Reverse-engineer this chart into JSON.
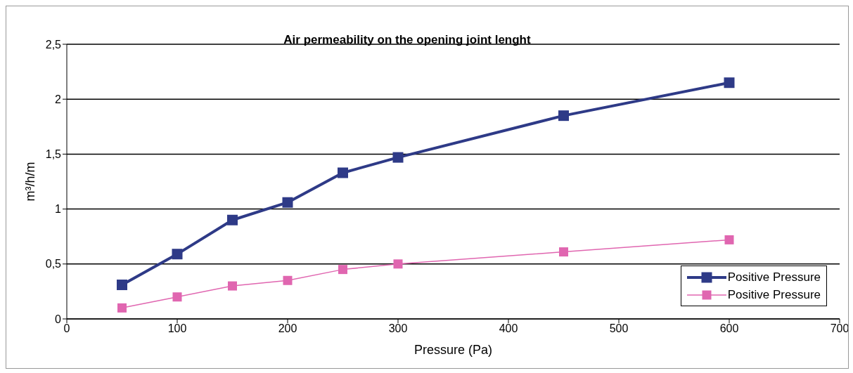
{
  "chart_data": {
    "type": "line",
    "title": "Air permeability on the opening joint lenght",
    "xlabel": "Pressure (Pa)",
    "ylabel": "m³/h/m",
    "x": [
      50,
      100,
      150,
      200,
      250,
      300,
      450,
      600
    ],
    "series": [
      {
        "name": "Positive Pressure",
        "color": "#2e3a87",
        "values": [
          0.31,
          0.59,
          0.9,
          1.06,
          1.33,
          1.47,
          1.85,
          2.15
        ]
      },
      {
        "name": "Positive Pressure",
        "color": "#e066b0",
        "values": [
          0.1,
          0.2,
          0.3,
          0.35,
          0.45,
          0.5,
          0.61,
          0.72
        ]
      }
    ],
    "xlim": [
      0,
      700
    ],
    "xticks": [
      0,
      100,
      200,
      300,
      400,
      500,
      600,
      700
    ],
    "ylim": [
      0,
      2.5
    ],
    "yticks": [
      0,
      {
        "value": 0.5,
        "label": "0,5"
      },
      1,
      {
        "value": 1.5,
        "label": "1,5"
      },
      2,
      {
        "value": 2.5,
        "label": "2,5"
      }
    ],
    "grid": "y",
    "legend": "bottom right",
    "marker": "square",
    "line_style": "solid"
  }
}
